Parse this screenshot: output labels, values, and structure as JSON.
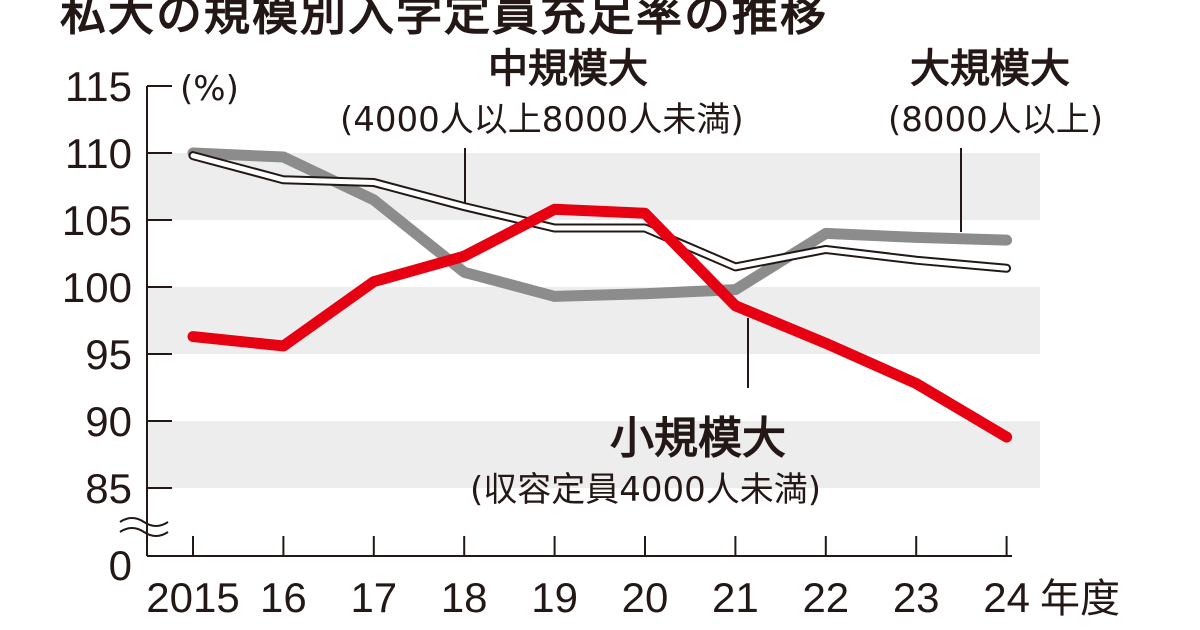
{
  "chart_data": {
    "type": "line",
    "title": "私大の規模別入学定員充足率の推移",
    "ylabel": "(%)",
    "xlabel_unit": "年度",
    "categories": [
      "2015",
      "16",
      "17",
      "18",
      "19",
      "20",
      "21",
      "22",
      "23",
      "24"
    ],
    "y_ticks": [
      "115",
      "110",
      "105",
      "100",
      "95",
      "90",
      "85",
      "0"
    ],
    "ylim": [
      85,
      115
    ],
    "axis_break": true,
    "grid": "alternating horizontal bands",
    "series": [
      {
        "name": "大規模大",
        "note": "(8000人以上)",
        "color": "#8c8c8c",
        "values": [
          110.0,
          109.7,
          106.5,
          101.1,
          99.3,
          99.5,
          99.8,
          104.0,
          103.7,
          103.5
        ]
      },
      {
        "name": "中規模大",
        "note": "(4000人以上8000人未満)",
        "color": "#ffffff",
        "values": [
          109.8,
          108.0,
          107.8,
          106.0,
          104.4,
          104.4,
          101.5,
          102.8,
          102.0,
          101.4
        ]
      },
      {
        "name": "小規模大",
        "note": "(収容定員4000人未満)",
        "color": "#e60012",
        "values": [
          96.3,
          95.6,
          100.4,
          102.3,
          105.8,
          105.5,
          98.6,
          95.8,
          92.8,
          88.8
        ]
      }
    ]
  }
}
